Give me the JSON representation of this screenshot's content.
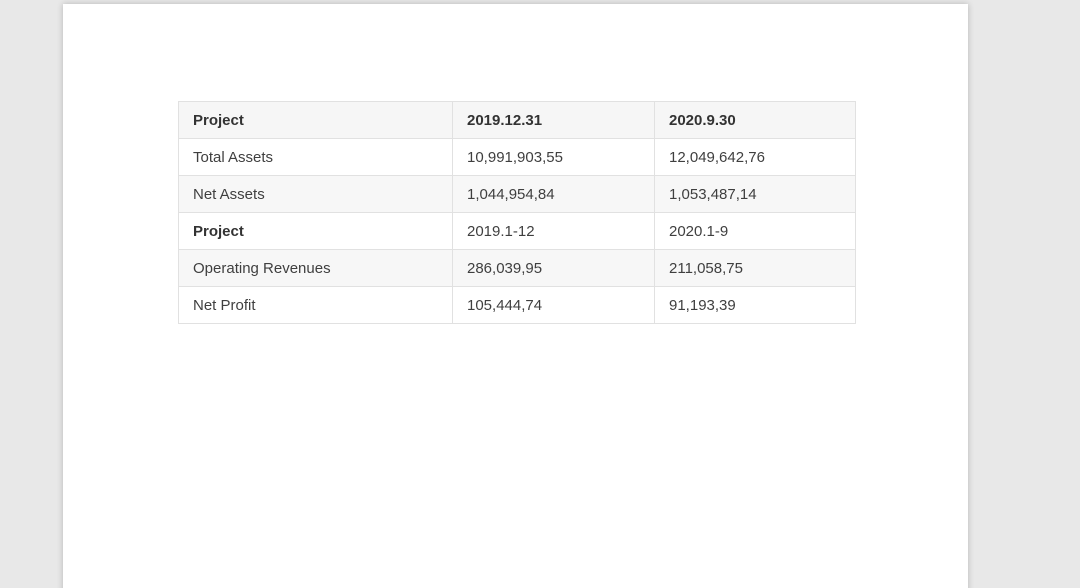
{
  "page": {
    "background_color": "#e8e8e8",
    "surface_color": "#ffffff"
  },
  "table": {
    "columns": [
      "Project",
      "2019.12.31",
      "2020.9.30"
    ],
    "rows": [
      {
        "label": "Total Assets",
        "values": [
          "10,991,903,55",
          "12,049,642,76"
        ]
      },
      {
        "label": "Net Assets",
        "values": [
          "1,044,954,84",
          "1,053,487,14"
        ]
      },
      {
        "label": "Project",
        "values": [
          "2019.1-12",
          "2020.1-9"
        ]
      },
      {
        "label": "Operating Revenues",
        "values": [
          "286,039,95",
          "211,058,75"
        ]
      },
      {
        "label": "Net Profit",
        "values": [
          "105,444,74",
          "91,193,39"
        ]
      }
    ],
    "colors": {
      "header_bg": "#f6f6f6",
      "stripe_bg": "#f7f7f7",
      "border": "#e1e1e1",
      "text": "#3f3f3f"
    }
  }
}
